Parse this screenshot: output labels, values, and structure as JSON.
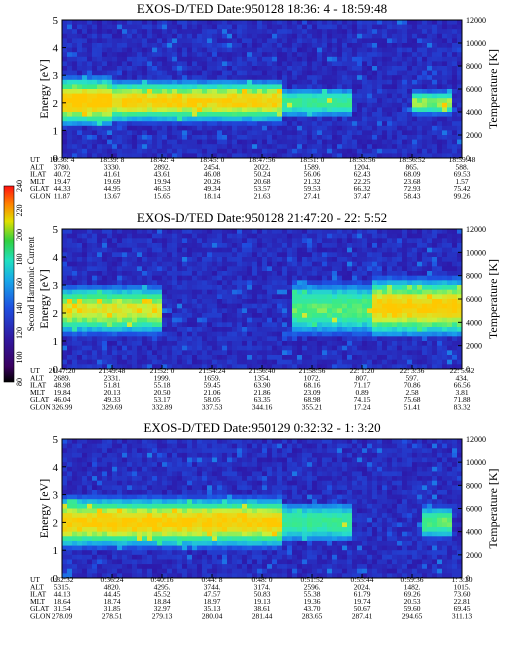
{
  "chart_data": {
    "type": "heatmap",
    "colorbar": {
      "label": "Second Harmonic Current",
      "ticks": [
        "80",
        "100",
        "120",
        "140",
        "160",
        "180",
        "200",
        "220",
        "240"
      ],
      "colors": [
        "#000000",
        "#5a0070",
        "#2a1aa8",
        "#1e4fe0",
        "#1aa0e8",
        "#1ee0c8",
        "#30d040",
        "#e0e000",
        "#ff8000",
        "#ff1010"
      ]
    },
    "panels": [
      {
        "title": "EXOS-D/TED   Date:950128  18:36: 4 - 18:59:48",
        "ylabel": "Energy [eV]",
        "y2label": "Temperature [K]",
        "ylim": [
          0,
          5
        ],
        "y2lim": [
          0,
          12000
        ],
        "yticks": [
          "0",
          "1",
          "2",
          "3",
          "4",
          "5"
        ],
        "y2ticks": [
          "0",
          "2000",
          "4000",
          "6000",
          "8000",
          "10000",
          "12000"
        ],
        "table": [
          [
            "UT",
            "18:36: 4",
            "18:39: 8",
            "18:42: 4",
            "18:45: 0",
            "18:47:56",
            "18:51: 0",
            "18:53:56",
            "18:56:52",
            "18:59:48"
          ],
          [
            "ALT",
            "3780.",
            "3330.",
            "2892.",
            "2454.",
            "2022.",
            "1589.",
            "1204.",
            "865.",
            "588."
          ],
          [
            "ILAT",
            "40.72",
            "41.61",
            "43.61",
            "46.08",
            "50.24",
            "56.06",
            "62.43",
            "68.09",
            "69.53"
          ],
          [
            "MLT",
            "19.47",
            "19.69",
            "19.94",
            "20.26",
            "20.68",
            "21.32",
            "22.25",
            "23.68",
            "1.57"
          ],
          [
            "GLAT",
            "44.33",
            "44.95",
            "46.53",
            "49.34",
            "53.57",
            "59.53",
            "66.32",
            "72.93",
            "75.42"
          ],
          [
            "GLON",
            "11.87",
            "13.67",
            "15.65",
            "18.14",
            "21.63",
            "27.41",
            "37.47",
            "58.43",
            "99.26"
          ]
        ],
        "bands": [
          {
            "t0": 0.0,
            "t1": 0.12,
            "e": 2.05,
            "w": 0.95,
            "v": 0.72
          },
          {
            "t0": 0.12,
            "t1": 0.55,
            "e": 2.05,
            "w": 0.8,
            "v": 0.68
          },
          {
            "t0": 0.55,
            "t1": 0.72,
            "e": 2.0,
            "w": 0.55,
            "v": 0.45
          },
          {
            "t0": 0.88,
            "t1": 0.97,
            "e": 2.0,
            "w": 0.45,
            "v": 0.55
          }
        ]
      },
      {
        "title": "EXOS-D/TED   Date:950128  21:47:20 - 22: 5:52",
        "ylabel": "Energy [eV]",
        "y2label": "Temperature [K]",
        "ylim": [
          0,
          5
        ],
        "y2lim": [
          0,
          12000
        ],
        "yticks": [
          "0",
          "1",
          "2",
          "3",
          "4",
          "5"
        ],
        "y2ticks": [
          "0",
          "2000",
          "4000",
          "6000",
          "8000",
          "10000",
          "12000"
        ],
        "table": [
          [
            "UT",
            "21:47:20",
            "21:49:48",
            "21:52: 0",
            "21:54:24",
            "21:56:40",
            "21:58:56",
            "22: 1:20",
            "22: 3:36",
            "22: 5:52"
          ],
          [
            "ALT",
            "2689.",
            "2331.",
            "1999.",
            "1659.",
            "1354.",
            "1072.",
            "807.",
            "597.",
            "434."
          ],
          [
            "ILAT",
            "48.98",
            "51.81",
            "55.18",
            "59.45",
            "63.90",
            "68.16",
            "71.17",
            "70.86",
            "66.56"
          ],
          [
            "MLT",
            "19.84",
            "20.13",
            "20.50",
            "21.06",
            "21.86",
            "23.09",
            "0.89",
            "2.58",
            "3.81"
          ],
          [
            "GLAT",
            "46.04",
            "49.33",
            "53.17",
            "58.05",
            "63.35",
            "68.98",
            "74.15",
            "75.68",
            "71.88"
          ],
          [
            "GLON",
            "326.99",
            "329.69",
            "332.89",
            "337.53",
            "344.16",
            "355.21",
            "17.24",
            "51.41",
            "83.32"
          ]
        ],
        "bands": [
          {
            "t0": 0.0,
            "t1": 0.25,
            "e": 2.1,
            "w": 0.9,
            "v": 0.62
          },
          {
            "t0": 0.57,
            "t1": 0.78,
            "e": 2.15,
            "w": 0.95,
            "v": 0.5
          },
          {
            "t0": 0.78,
            "t1": 1.0,
            "e": 2.2,
            "w": 1.1,
            "v": 0.7
          }
        ]
      },
      {
        "title": "EXOS-D/TED   Date:950129   0:32:32 - 1: 3:20",
        "ylabel": "Energy [eV]",
        "y2label": "Temperature [K]",
        "ylim": [
          0,
          5
        ],
        "y2lim": [
          0,
          12000
        ],
        "yticks": [
          "0",
          "1",
          "2",
          "3",
          "4",
          "5"
        ],
        "y2ticks": [
          "0",
          "2000",
          "4000",
          "6000",
          "8000",
          "10000",
          "12000"
        ],
        "table": [
          [
            "UT",
            "0:32:32",
            "0:36:24",
            "0:40:16",
            "0:44: 8",
            "0:48: 0",
            "0:51:52",
            "0:55:44",
            "0:59:36",
            "1: 3:20"
          ],
          [
            "ALT",
            "5315.",
            "4820.",
            "4295.",
            "3744.",
            "3174.",
            "2596.",
            "2024.",
            "1482.",
            "1015."
          ],
          [
            "ILAT",
            "44.13",
            "44.45",
            "45.52",
            "47.57",
            "50.83",
            "55.38",
            "61.79",
            "69.26",
            "73.60"
          ],
          [
            "MLT",
            "18.64",
            "18.74",
            "18.84",
            "18.97",
            "19.13",
            "19.36",
            "19.74",
            "20.53",
            "22.81"
          ],
          [
            "GLAT",
            "31.54",
            "31.85",
            "32.97",
            "35.13",
            "38.61",
            "43.70",
            "50.67",
            "59.60",
            "69.45"
          ],
          [
            "GLON",
            "278.09",
            "278.51",
            "279.13",
            "280.04",
            "281.44",
            "283.65",
            "287.41",
            "294.65",
            "311.13"
          ]
        ],
        "bands": [
          {
            "t0": 0.0,
            "t1": 0.55,
            "e": 2.0,
            "w": 0.95,
            "v": 0.7
          },
          {
            "t0": 0.55,
            "t1": 0.72,
            "e": 2.0,
            "w": 0.75,
            "v": 0.45
          },
          {
            "t0": 0.9,
            "t1": 0.97,
            "e": 2.0,
            "w": 0.6,
            "v": 0.5
          }
        ]
      }
    ]
  }
}
